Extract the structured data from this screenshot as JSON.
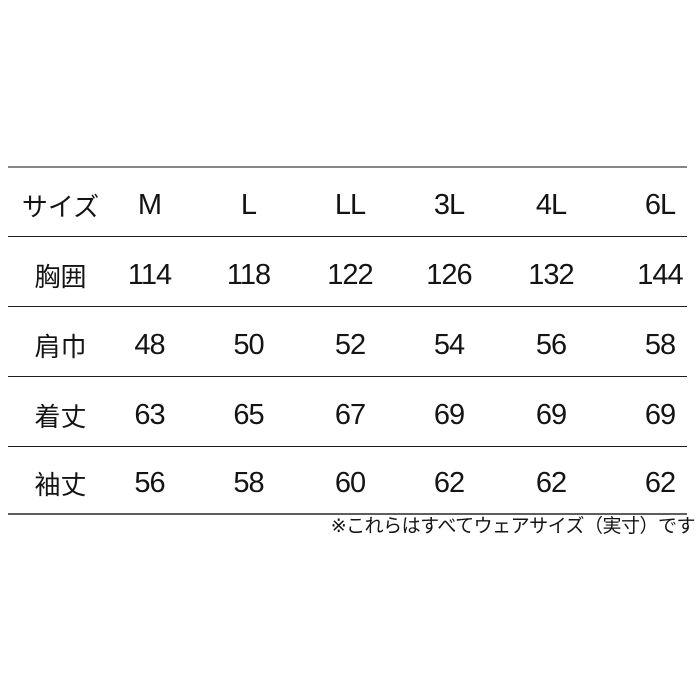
{
  "chart_data": {
    "type": "table",
    "columns": [
      "サイズ",
      "M",
      "L",
      "LL",
      "3L",
      "4L",
      "6L"
    ],
    "rows": [
      {
        "label": "胸囲",
        "values": [
          "114",
          "118",
          "122",
          "126",
          "132",
          "144"
        ]
      },
      {
        "label": "肩巾",
        "values": [
          "48",
          "50",
          "52",
          "54",
          "56",
          "58"
        ]
      },
      {
        "label": "着丈",
        "values": [
          "63",
          "65",
          "67",
          "69",
          "69",
          "69"
        ]
      },
      {
        "label": "袖丈",
        "values": [
          "56",
          "58",
          "60",
          "62",
          "62",
          "62"
        ]
      }
    ],
    "footnote": "※これらはすべてウェアサイズ（実寸）です",
    "layout": "header row on top, 1 label column + 6 size columns, horizontal rules only"
  },
  "colors": {
    "background": "#ffffff",
    "text": "#141414",
    "rule_top": "#868686",
    "rule_inner": "#1c1c1c",
    "rule_bottom": "#5e5e5e"
  }
}
